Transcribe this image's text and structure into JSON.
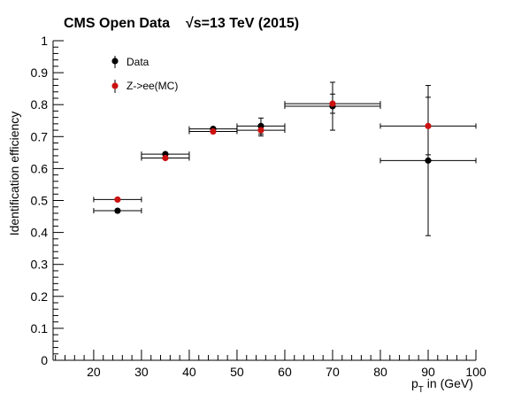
{
  "chart_data": {
    "type": "scatter",
    "title": "CMS Open Data",
    "title_energy": "√s=13 TeV (2015)",
    "xlabel": "p_T in (GeV)",
    "xlabel_main": "p",
    "xlabel_sub": "T",
    "xlabel_rest": " in (GeV)",
    "ylabel": "Identification efficiency",
    "xlim": [
      11.5,
      100
    ],
    "ylim": [
      0,
      1
    ],
    "xticks": [
      "20",
      "30",
      "40",
      "50",
      "60",
      "70",
      "80",
      "90",
      "100"
    ],
    "yticks": [
      "0",
      "0.1",
      "0.2",
      "0.3",
      "0.4",
      "0.5",
      "0.6",
      "0.7",
      "0.8",
      "0.9",
      "1"
    ],
    "grid": false,
    "legend_position": "top-left",
    "series": [
      {
        "name": "Data",
        "color": "#000000",
        "points": [
          {
            "x": 25,
            "xlo": 20,
            "xhi": 30,
            "y": 0.468,
            "yerr": 0.008
          },
          {
            "x": 35,
            "xlo": 30,
            "xhi": 40,
            "y": 0.645,
            "yerr": 0.008
          },
          {
            "x": 45,
            "xlo": 40,
            "xhi": 50,
            "y": 0.724,
            "yerr": 0.008
          },
          {
            "x": 55,
            "xlo": 50,
            "xhi": 60,
            "y": 0.733,
            "yerr": 0.025
          },
          {
            "x": 70,
            "xlo": 60,
            "xhi": 80,
            "y": 0.795,
            "yerr": 0.075
          },
          {
            "x": 90,
            "xlo": 80,
            "xhi": 100,
            "y": 0.625,
            "yerr": 0.235
          }
        ]
      },
      {
        "name": "Z->ee(MC)",
        "color": "#cc1111",
        "points": [
          {
            "x": 25,
            "xlo": 20,
            "xhi": 30,
            "y": 0.503,
            "yerr": 0.004
          },
          {
            "x": 35,
            "xlo": 30,
            "xhi": 40,
            "y": 0.633,
            "yerr": 0.004
          },
          {
            "x": 45,
            "xlo": 40,
            "xhi": 50,
            "y": 0.716,
            "yerr": 0.004
          },
          {
            "x": 55,
            "xlo": 50,
            "xhi": 60,
            "y": 0.72,
            "yerr": 0.018
          },
          {
            "x": 70,
            "xlo": 60,
            "xhi": 80,
            "y": 0.803,
            "yerr": 0.03
          },
          {
            "x": 90,
            "xlo": 80,
            "xhi": 100,
            "y": 0.733,
            "yerr": 0.09
          }
        ]
      }
    ]
  }
}
